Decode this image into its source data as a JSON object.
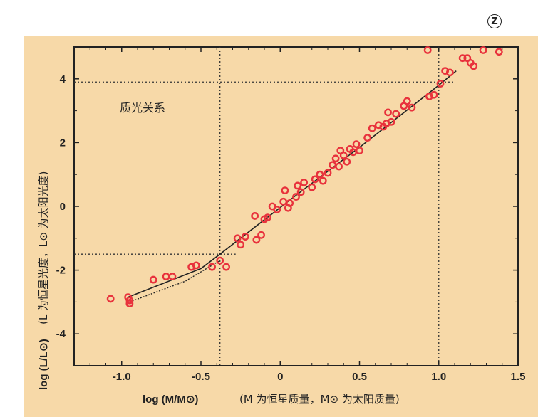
{
  "badge": {
    "text": "Z"
  },
  "chart_data": {
    "type": "scatter",
    "title": "",
    "annotation": "质光关系",
    "xlabel": "log (M/M⊙)",
    "xlabel_note": "(M 为恒星质量，M⊙ 为太阳质量)",
    "ylabel": "log (L/L⊙)",
    "ylabel_note": "(L 为恒星光度，L⊙ 为太阳光度)",
    "xlim": [
      -1.3,
      1.5
    ],
    "ylim": [
      -5,
      5
    ],
    "xticks": [
      "-1.0",
      "-0.5",
      "0",
      "0.5",
      "1.0",
      "1.5"
    ],
    "xtick_values": [
      -1.0,
      -0.5,
      0,
      0.5,
      1.0,
      1.5
    ],
    "yticks": [
      "-4",
      "-2",
      "0",
      "2",
      "4"
    ],
    "ytick_values": [
      -4,
      -2,
      0,
      2,
      4
    ],
    "grid": false,
    "colors": {
      "points": "#e8323c",
      "line": "#222222",
      "background": "#f7d9a8"
    },
    "points": {
      "x": [
        -1.07,
        -0.96,
        -0.95,
        -0.95,
        -0.8,
        -0.72,
        -0.68,
        -0.56,
        -0.53,
        -0.43,
        -0.38,
        -0.34,
        -0.27,
        -0.25,
        -0.22,
        -0.16,
        -0.15,
        -0.12,
        -0.1,
        -0.08,
        -0.05,
        -0.02,
        0.02,
        0.03,
        0.05,
        0.06,
        0.1,
        0.11,
        0.13,
        0.15,
        0.2,
        0.22,
        0.25,
        0.27,
        0.3,
        0.33,
        0.35,
        0.37,
        0.38,
        0.4,
        0.42,
        0.44,
        0.46,
        0.48,
        0.5,
        0.55,
        0.58,
        0.62,
        0.65,
        0.67,
        0.68,
        0.7,
        0.73,
        0.78,
        0.8,
        0.83,
        0.93,
        0.94,
        0.97,
        1.01,
        1.04,
        1.07,
        1.15,
        1.18,
        1.2,
        1.22,
        1.28,
        1.38
      ],
      "y": [
        -2.9,
        -2.85,
        -3.05,
        -2.95,
        -2.3,
        -2.2,
        -2.2,
        -1.9,
        -1.85,
        -1.9,
        -1.7,
        -1.9,
        -1.0,
        -1.2,
        -0.95,
        -0.3,
        -1.05,
        -0.9,
        -0.4,
        -0.35,
        0.0,
        -0.1,
        0.15,
        0.5,
        -0.05,
        0.1,
        0.3,
        0.65,
        0.45,
        0.75,
        0.6,
        0.85,
        1.0,
        0.8,
        1.05,
        1.3,
        1.5,
        1.25,
        1.75,
        1.6,
        1.4,
        1.8,
        1.7,
        1.95,
        1.75,
        2.15,
        2.45,
        2.55,
        2.5,
        2.6,
        2.95,
        2.65,
        2.9,
        3.15,
        3.3,
        3.1,
        4.9,
        3.45,
        3.5,
        3.85,
        4.25,
        4.2,
        4.65,
        4.65,
        4.5,
        4.4,
        4.9,
        4.85
      ]
    },
    "fit_line": {
      "x": [
        -0.96,
        -0.5,
        -0.38,
        0.1,
        0.5,
        1.0,
        1.11
      ],
      "y": [
        -2.85,
        -1.95,
        -1.5,
        0.35,
        1.85,
        3.8,
        4.25
      ]
    },
    "fit_line_dotted": {
      "x": [
        -0.95,
        -0.6,
        -0.38
      ],
      "y": [
        -3.0,
        -2.35,
        -1.7
      ]
    },
    "reference_lines": [
      {
        "x": -0.38,
        "y": -1.5
      },
      {
        "x": 1.0,
        "y": 3.9
      }
    ]
  }
}
